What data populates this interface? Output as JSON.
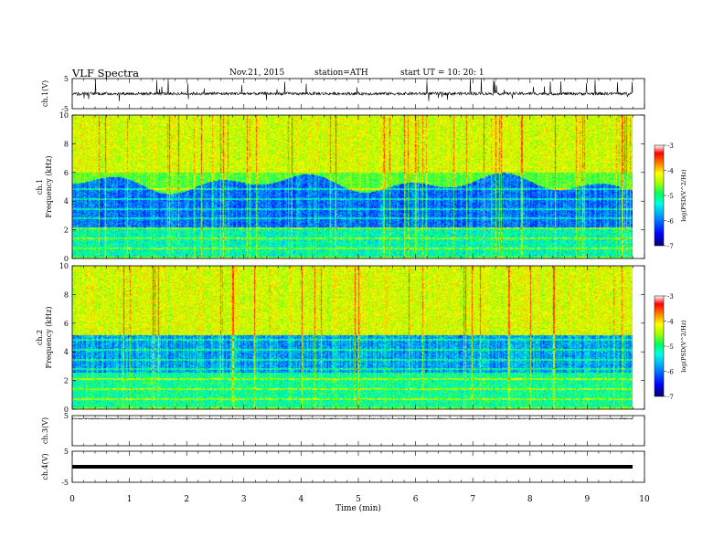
{
  "header": {
    "title": "VLF  Spectra",
    "date": "Nov.21, 2015",
    "station": "station=ATH",
    "start": "start  UT  =    10: 20: 1"
  },
  "colors": {
    "colormap": [
      "#000080",
      "#0000ff",
      "#00a0ff",
      "#00ffff",
      "#00ff80",
      "#80ff00",
      "#ffff00",
      "#ff8000",
      "#ff0000",
      "#ffffff"
    ],
    "trace": "#000000"
  },
  "chart_data": [
    {
      "type": "line",
      "ylabel": "ch.1(V)",
      "ylim": [
        -5,
        5
      ],
      "yticks": [
        "5",
        "-5"
      ],
      "description_free": true,
      "baseline": 0,
      "noise_amplitude": 1,
      "spike_max": 4.5
    },
    {
      "type": "heatmap",
      "ylabel": "ch.1\nFrequency  (kHz)",
      "ylabel_lines": [
        "ch.1",
        "Frequency  (kHz)"
      ],
      "ylim": [
        0,
        10
      ],
      "yticks": [
        "0",
        "2",
        "4",
        "6",
        "8",
        "10"
      ],
      "colorbar_label": "log(PSD(V^2/Hz)",
      "colorbar_ticks": [
        "-3",
        "-4",
        "-5",
        "-6",
        "-7"
      ],
      "clim": [
        -7,
        -3
      ]
    },
    {
      "type": "heatmap",
      "ylabel_lines": [
        "ch.2",
        "Frequency  (kHz)"
      ],
      "ylim": [
        0,
        10
      ],
      "yticks": [
        "0",
        "2",
        "4",
        "6",
        "8",
        "10"
      ],
      "colorbar_label": "log(PSD(V^2/Hz)",
      "colorbar_ticks": [
        "-3",
        "-4",
        "-5",
        "-6",
        "-7"
      ],
      "clim": [
        -7,
        -3
      ]
    },
    {
      "type": "line",
      "ylabel": "ch.3(V)",
      "ylim": [
        -5,
        5
      ],
      "yticks": [
        "5"
      ],
      "baseline": 5
    },
    {
      "type": "line",
      "ylabel": "ch.4(V)",
      "ylim": [
        -5,
        5
      ],
      "yticks": [
        "5",
        "-5"
      ],
      "baseline": 0
    }
  ],
  "xaxis": {
    "label": "Time  (min)",
    "xlim": [
      0,
      10
    ],
    "ticks": [
      "0",
      "1",
      "2",
      "3",
      "4",
      "5",
      "6",
      "7",
      "8",
      "9",
      "10"
    ],
    "data_end": 9.8
  }
}
